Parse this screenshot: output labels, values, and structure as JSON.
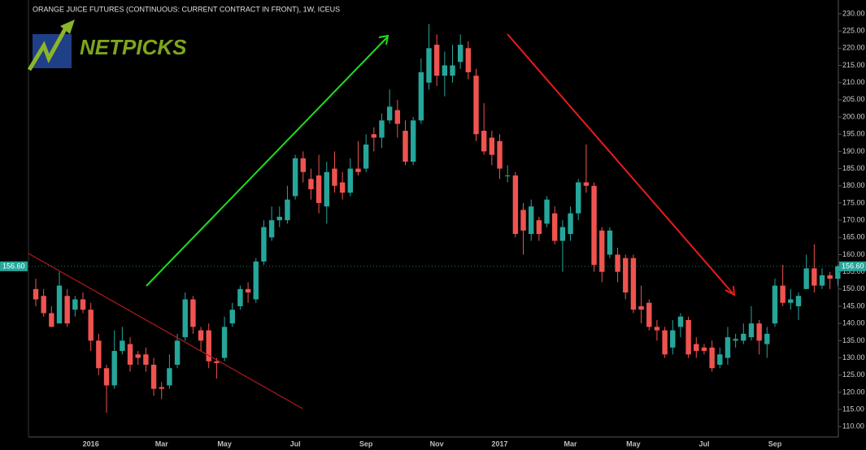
{
  "chart_data": {
    "type": "candlestick",
    "title": "ORANGE JUICE FUTURES (CONTINUOUS: CURRENT CONTRACT IN FRONT), 1W, ICEUS",
    "logo": "NETPICKS",
    "up_color": "#26a69a",
    "down_color": "#ef5350",
    "categories": [
      null,
      null,
      null,
      null,
      null,
      null,
      null,
      "2016",
      null,
      null,
      null,
      null,
      null,
      null,
      null,
      null,
      "Mar",
      null,
      null,
      null,
      null,
      null,
      null,
      null,
      "May",
      null,
      null,
      null,
      null,
      null,
      null,
      null,
      null,
      "Jul",
      null,
      null,
      null,
      null,
      null,
      null,
      null,
      null,
      "Sep",
      null,
      null,
      null,
      null,
      null,
      null,
      null,
      null,
      "Nov",
      null,
      null,
      null,
      null,
      null,
      null,
      null,
      "2017",
      null,
      null,
      null,
      null,
      null,
      null,
      null,
      null,
      "Mar",
      null,
      null,
      null,
      null,
      null,
      null,
      null,
      "May",
      null,
      null,
      null,
      null,
      null,
      null,
      null,
      null,
      "Jul",
      null,
      null,
      null,
      null,
      null,
      null,
      null,
      null,
      "Sep",
      null,
      null,
      null,
      null,
      null,
      null,
      null,
      null
    ],
    "open": [
      150,
      148,
      143,
      140,
      148,
      144,
      147,
      144,
      135,
      127,
      122,
      132,
      134,
      131,
      131,
      128,
      121.5,
      122,
      128,
      136,
      147,
      138,
      138,
      129,
      130,
      140,
      145,
      150,
      147,
      158,
      165,
      170,
      170,
      177,
      188,
      182,
      183,
      174,
      185,
      181,
      178,
      185,
      185,
      195,
      194,
      199,
      202,
      196,
      187,
      199,
      210,
      221,
      212,
      212,
      216,
      220,
      212,
      196,
      194,
      193,
      183,
      183,
      173,
      166,
      170,
      169,
      172,
      164,
      166,
      172,
      181,
      180,
      167,
      160,
      160,
      159,
      159,
      145,
      146,
      139,
      138,
      133,
      139,
      141,
      134,
      133,
      133,
      128,
      130,
      135,
      135,
      136,
      140,
      134,
      140,
      151,
      146,
      145,
      150,
      156,
      151,
      154,
      153
    ],
    "high": [
      153,
      150,
      145,
      155,
      150,
      148,
      149,
      146,
      137,
      128,
      138,
      139,
      136,
      132,
      133,
      130,
      123,
      131,
      137,
      149,
      148,
      139,
      140,
      130,
      142,
      146,
      151,
      152,
      159,
      170,
      174,
      174,
      180,
      189,
      190,
      185,
      189,
      187,
      190,
      184,
      188,
      193,
      195,
      197,
      201,
      208,
      205,
      199,
      200,
      217,
      227,
      224,
      219,
      221,
      224,
      222,
      214,
      204,
      196,
      195,
      186,
      184,
      175,
      176,
      171,
      177,
      174,
      170,
      174,
      182,
      192,
      181,
      168,
      168,
      162,
      160,
      160,
      151,
      147,
      141,
      139,
      141,
      143,
      142,
      136,
      134,
      135,
      133,
      139,
      137,
      140,
      145,
      141,
      139,
      153,
      157,
      150,
      149,
      160,
      163,
      156,
      155,
      157
    ],
    "low": [
      145,
      142,
      139,
      140,
      139,
      142,
      143,
      132,
      125,
      114,
      121,
      131,
      126,
      128,
      126,
      119,
      118,
      121,
      127,
      135,
      137,
      132,
      127,
      124,
      129,
      139,
      144,
      146,
      146,
      157,
      164,
      168,
      169,
      176,
      181,
      176,
      172,
      169,
      178,
      176,
      177,
      183,
      184,
      190,
      191,
      198,
      194,
      186,
      186,
      198,
      208,
      209,
      206,
      210,
      214,
      211,
      193,
      189,
      186,
      182,
      181,
      165,
      160,
      164,
      164,
      168,
      163,
      155,
      164,
      170,
      178,
      155,
      152,
      159,
      152,
      147,
      143,
      140,
      138,
      135,
      130,
      131,
      136,
      130,
      130,
      131,
      126,
      127,
      128,
      133,
      134,
      135,
      131,
      130,
      139,
      145,
      144,
      141,
      150,
      149,
      150,
      150,
      151
    ],
    "close": [
      147,
      143,
      139,
      151,
      140,
      147,
      144,
      135,
      127,
      122,
      132,
      135,
      128,
      130,
      128,
      121,
      121,
      127,
      135,
      147,
      139,
      135,
      129,
      128.5,
      139,
      144,
      150,
      149,
      158,
      168,
      170,
      171,
      176,
      188,
      184,
      179,
      175,
      184,
      180,
      178,
      185,
      184,
      192,
      194,
      199,
      203,
      198,
      187,
      199,
      213,
      220,
      212,
      215,
      215,
      221,
      213,
      195,
      190,
      189,
      185,
      183,
      166,
      167,
      174,
      166,
      176,
      164,
      168,
      172,
      181,
      180,
      157,
      155,
      167,
      155,
      149,
      144,
      144,
      139,
      138,
      131,
      138,
      142,
      131,
      132,
      132,
      127,
      131,
      136,
      135.5,
      137,
      140,
      135,
      137,
      151,
      146,
      147,
      148,
      156,
      151,
      154,
      153,
      156.6
    ],
    "last_price": {
      "value": 156.6,
      "label": "156.60"
    },
    "ylim": [
      107,
      234
    ],
    "yticks": [
      {
        "value": 110,
        "label": "110.00"
      },
      {
        "value": 115,
        "label": "115.00"
      },
      {
        "value": 120,
        "label": "120.00"
      },
      {
        "value": 125,
        "label": "125.00"
      },
      {
        "value": 130,
        "label": "130.00"
      },
      {
        "value": 135,
        "label": "135.00"
      },
      {
        "value": 140,
        "label": "140.00"
      },
      {
        "value": 145,
        "label": "145.00"
      },
      {
        "value": 150,
        "label": "150.00"
      },
      {
        "value": 155,
        "label": "155.00"
      },
      {
        "value": 160,
        "label": "160.00"
      },
      {
        "value": 165,
        "label": "165.00"
      },
      {
        "value": 170,
        "label": "170.00"
      },
      {
        "value": 175,
        "label": "175.00"
      },
      {
        "value": 180,
        "label": "180.00"
      },
      {
        "value": 185,
        "label": "185.00"
      },
      {
        "value": 190,
        "label": "190.00"
      },
      {
        "value": 195,
        "label": "195.00"
      },
      {
        "value": 200,
        "label": "200.00"
      },
      {
        "value": 205,
        "label": "205.00"
      },
      {
        "value": 210,
        "label": "210.00"
      },
      {
        "value": 215,
        "label": "215.00"
      },
      {
        "value": 220,
        "label": "220.00"
      },
      {
        "value": 225,
        "label": "225.00"
      },
      {
        "value": 230,
        "label": "230.00"
      }
    ]
  }
}
